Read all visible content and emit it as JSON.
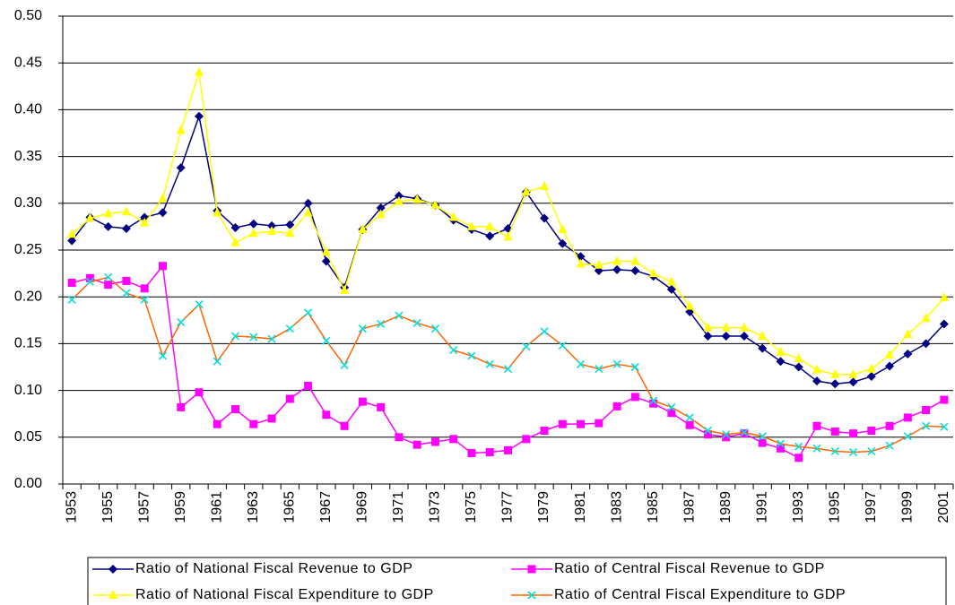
{
  "chart_data": {
    "type": "line",
    "categories": [
      "1953",
      null,
      "1955",
      null,
      "1957",
      null,
      "1959",
      null,
      "1961",
      null,
      "1963",
      null,
      "1965",
      null,
      "1967",
      null,
      "1969",
      null,
      "1971",
      null,
      "1973",
      null,
      "1975",
      null,
      "1977",
      null,
      "1979",
      null,
      "1981",
      null,
      "1983",
      null,
      "1985",
      null,
      "1987",
      null,
      "1989",
      null,
      "1991",
      null,
      "1993",
      null,
      "1995",
      null,
      "1997",
      null,
      "1999",
      null,
      "2001"
    ],
    "ylim": [
      0,
      0.5
    ],
    "yticks": [
      {
        "value": 0,
        "label": "0.00"
      },
      0.05,
      {
        "value": 0.1,
        "label": "0.10"
      },
      0.15,
      {
        "value": 0.2,
        "label": "0.20"
      },
      0.25,
      {
        "value": 0.3,
        "label": "0.30"
      },
      0.35,
      {
        "value": 0.4,
        "label": "0.40"
      },
      0.45,
      {
        "value": 0.5,
        "label": "0.50"
      }
    ],
    "grid": true,
    "legend": "bottom",
    "series": [
      {
        "name": "Ratio of National Fiscal Revenue to GDP",
        "color": "#000080",
        "marker": "diamond",
        "marker_color": "#000080",
        "values": [
          0.26,
          0.285,
          0.275,
          0.273,
          0.285,
          0.29,
          0.338,
          0.393,
          0.292,
          0.274,
          0.278,
          0.276,
          0.277,
          0.3,
          0.238,
          0.21,
          0.272,
          0.295,
          0.308,
          0.305,
          0.298,
          0.282,
          0.272,
          0.265,
          0.273,
          0.312,
          0.284,
          0.257,
          0.243,
          0.228,
          0.229,
          0.228,
          0.222,
          0.208,
          0.184,
          0.158,
          0.158,
          0.158,
          0.145,
          0.131,
          0.125,
          0.11,
          0.107,
          0.109,
          0.115,
          0.126,
          0.139,
          0.15,
          0.171
        ]
      },
      {
        "name": "Ratio of Central Fiscal Revenue to GDP",
        "color": "#ff00ff",
        "marker": "square",
        "marker_color": "#ff00ff",
        "values": [
          0.215,
          0.22,
          0.213,
          0.217,
          0.209,
          0.233,
          0.082,
          0.098,
          0.064,
          0.08,
          0.064,
          0.07,
          0.091,
          0.105,
          0.074,
          0.062,
          0.088,
          0.082,
          0.05,
          0.042,
          0.045,
          0.048,
          0.033,
          0.034,
          0.036,
          0.048,
          0.057,
          0.064,
          0.064,
          0.065,
          0.083,
          0.093,
          0.086,
          0.076,
          0.063,
          0.053,
          0.05,
          0.054,
          0.044,
          0.038,
          0.028,
          0.062,
          0.056,
          0.054,
          0.057,
          0.062,
          0.071,
          0.079,
          0.09
        ]
      },
      {
        "name": "Ratio of National Fiscal Expenditure to GDP",
        "color": "#ffff00",
        "marker": "triangle",
        "marker_color": "#ffff00",
        "values": [
          0.267,
          0.284,
          0.289,
          0.291,
          0.279,
          0.305,
          0.378,
          0.44,
          0.29,
          0.258,
          0.268,
          0.27,
          0.268,
          0.29,
          0.248,
          0.207,
          0.272,
          0.288,
          0.302,
          0.304,
          0.298,
          0.285,
          0.275,
          0.275,
          0.264,
          0.312,
          0.318,
          0.272,
          0.235,
          0.234,
          0.238,
          0.238,
          0.225,
          0.216,
          0.19,
          0.167,
          0.167,
          0.167,
          0.158,
          0.141,
          0.134,
          0.122,
          0.117,
          0.117,
          0.123,
          0.138,
          0.16,
          0.177,
          0.199
        ]
      },
      {
        "name": "Ratio of Central Fiscal Expenditure to GDP",
        "color": "#ff6600",
        "marker": "x",
        "marker_color": "#00e0e0",
        "values": [
          0.197,
          0.216,
          0.221,
          0.204,
          0.197,
          0.137,
          0.173,
          0.192,
          0.131,
          0.158,
          0.157,
          0.155,
          0.166,
          0.183,
          0.153,
          0.127,
          0.166,
          0.171,
          0.18,
          0.172,
          0.166,
          0.143,
          0.137,
          0.128,
          0.123,
          0.147,
          0.163,
          0.148,
          0.128,
          0.123,
          0.128,
          0.125,
          0.089,
          0.082,
          0.071,
          0.057,
          0.053,
          0.055,
          0.051,
          0.043,
          0.04,
          0.038,
          0.035,
          0.034,
          0.035,
          0.041,
          0.051,
          0.062,
          0.061
        ]
      }
    ]
  }
}
